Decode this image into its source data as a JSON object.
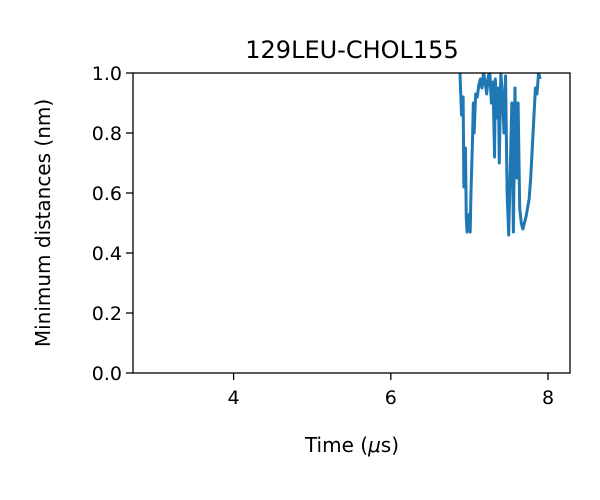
{
  "chart_data": {
    "type": "line",
    "title": "129LEU-CHOL155",
    "xlabel_prefix": "Time (",
    "xlabel_symbol": "μ",
    "xlabel_suffix": "s)",
    "ylabel": "Minimum distances (nm)",
    "xlim": [
      2.72,
      8.28
    ],
    "ylim": [
      0.0,
      1.0
    ],
    "xticks": [
      4,
      6,
      8
    ],
    "yticks": [
      0.0,
      0.2,
      0.4,
      0.6,
      0.8,
      1.0
    ],
    "grid": false,
    "series": [
      {
        "color": "#1f77b4",
        "x": [
          6.88,
          6.9,
          6.92,
          6.93,
          6.95,
          6.96,
          6.97,
          6.98,
          7.0,
          7.01,
          7.02,
          7.04,
          7.05,
          7.06,
          7.08,
          7.1,
          7.12,
          7.14,
          7.16,
          7.18,
          7.2,
          7.22,
          7.24,
          7.26,
          7.28,
          7.3,
          7.32,
          7.33,
          7.35,
          7.37,
          7.38,
          7.4,
          7.42,
          7.44,
          7.46,
          7.48,
          7.5,
          7.52,
          7.54,
          7.56,
          7.58,
          7.6,
          7.62,
          7.64,
          7.66,
          7.68,
          7.7,
          7.72,
          7.74,
          7.76,
          7.78,
          7.8,
          7.82,
          7.84,
          7.86,
          7.88,
          7.9
        ],
        "y": [
          1.0,
          0.86,
          0.92,
          0.62,
          0.75,
          0.52,
          0.47,
          0.5,
          0.53,
          0.47,
          0.6,
          0.78,
          0.9,
          0.8,
          0.93,
          0.92,
          0.96,
          0.98,
          0.95,
          1.0,
          0.97,
          0.93,
          0.99,
          1.0,
          0.9,
          0.97,
          0.72,
          0.98,
          0.85,
          0.95,
          0.7,
          1.0,
          0.93,
          0.8,
          0.99,
          0.6,
          0.46,
          0.68,
          0.9,
          0.47,
          0.95,
          0.65,
          0.9,
          0.55,
          0.5,
          0.48,
          0.5,
          0.52,
          0.55,
          0.58,
          0.65,
          0.75,
          0.85,
          0.95,
          0.93,
          1.0,
          0.98
        ]
      }
    ]
  }
}
